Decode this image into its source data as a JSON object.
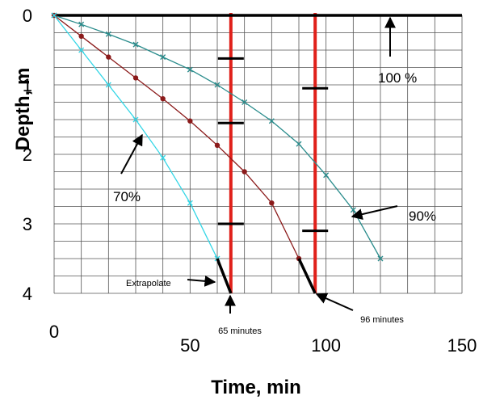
{
  "chart_data": {
    "type": "line",
    "xlabel": "Time, min",
    "ylabel": "Depth, m",
    "xlim": [
      0,
      150
    ],
    "ylim": [
      0,
      4
    ],
    "x_ticks": [
      "0",
      "50",
      "100",
      "150"
    ],
    "y_ticks": [
      "0",
      "1",
      "2",
      "3",
      "4"
    ],
    "grid": true,
    "series": [
      {
        "name": "100 %",
        "color": "#000000",
        "x": [
          0,
          150
        ],
        "y": [
          0,
          0
        ]
      },
      {
        "name": "90%",
        "color": "#2a8c8c",
        "x": [
          0,
          10,
          20,
          30,
          40,
          50,
          60,
          70,
          80,
          90,
          100,
          110,
          120
        ],
        "y": [
          0,
          0.13,
          0.27,
          0.42,
          0.6,
          0.78,
          1.0,
          1.25,
          1.52,
          1.85,
          2.3,
          2.8,
          3.5
        ]
      },
      {
        "name": "",
        "color": "#8b1a1a",
        "x": [
          0,
          10,
          20,
          30,
          40,
          50,
          60,
          70,
          80,
          90
        ],
        "y": [
          0,
          0.3,
          0.6,
          0.9,
          1.2,
          1.52,
          1.87,
          2.25,
          2.7,
          3.5
        ]
      },
      {
        "name": "70%",
        "color": "#33d6e6",
        "x": [
          0,
          10,
          20,
          30,
          40,
          50,
          60
        ],
        "y": [
          0,
          0.5,
          1.0,
          1.5,
          2.05,
          2.7,
          3.5
        ]
      }
    ],
    "extrapolations": [
      {
        "x": [
          60,
          65
        ],
        "y": [
          3.5,
          4.0
        ]
      },
      {
        "x": [
          90,
          96
        ],
        "y": [
          3.5,
          4.0
        ]
      }
    ],
    "vertical_lines": [
      {
        "x": 65,
        "color": "#e0201a",
        "label": "65 minutes",
        "ticks": [
          0.62,
          1.55,
          3.0
        ]
      },
      {
        "x": 96,
        "color": "#e0201a",
        "label": "96 minutes",
        "ticks": [
          1.05,
          3.1
        ]
      }
    ],
    "annotations": [
      {
        "text": "100 %",
        "points_to": {
          "x": 124,
          "y": 0
        }
      },
      {
        "text": "90%",
        "points_to": {
          "x": 111,
          "y": 2.82
        }
      },
      {
        "text": "70%",
        "points_to": {
          "x": 31,
          "y": 1.5
        }
      },
      {
        "text": "Extrapolate",
        "points_to": {
          "x": 64,
          "y": 3.85
        }
      }
    ]
  }
}
